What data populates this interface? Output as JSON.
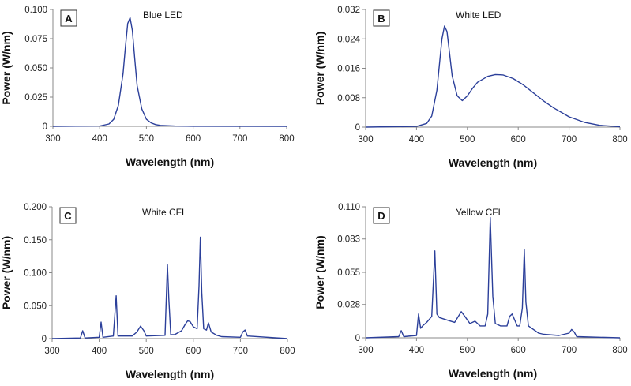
{
  "chart_data": [
    {
      "type": "line",
      "panel_label": "A",
      "title": "Blue LED",
      "xlabel": "Wavelength (nm)",
      "ylabel": "Power (W/nm)",
      "xlim": [
        300,
        800
      ],
      "ylim": [
        0,
        0.1
      ],
      "x_ticks": [
        "300",
        "400",
        "500",
        "600",
        "700",
        "800"
      ],
      "y_ticks": [
        "0",
        "0.025",
        "0.050",
        "0.075",
        "0.100"
      ],
      "x_tick_values": [
        300,
        400,
        500,
        600,
        700,
        800
      ],
      "y_tick_values": [
        0,
        0.025,
        0.05,
        0.075,
        0.1
      ],
      "series_color": "#2b3f9a",
      "series": [
        {
          "name": "Blue LED",
          "x": [
            300,
            400,
            420,
            430,
            440,
            450,
            455,
            460,
            465,
            470,
            475,
            480,
            490,
            500,
            510,
            520,
            530,
            560,
            600,
            800
          ],
          "y": [
            0,
            0.0003,
            0.002,
            0.006,
            0.018,
            0.045,
            0.068,
            0.088,
            0.093,
            0.082,
            0.058,
            0.035,
            0.015,
            0.006,
            0.003,
            0.0015,
            0.0008,
            0.0003,
            0.0001,
            0
          ]
        }
      ]
    },
    {
      "type": "line",
      "panel_label": "B",
      "title": "White LED",
      "xlabel": "Wavelength (nm)",
      "ylabel": "Power (W/nm)",
      "xlim": [
        300,
        800
      ],
      "ylim": [
        0,
        0.032
      ],
      "x_ticks": [
        "300",
        "400",
        "500",
        "600",
        "700",
        "800"
      ],
      "y_ticks": [
        "0",
        "0.008",
        "0.016",
        "0.024",
        "0.032"
      ],
      "x_tick_values": [
        300,
        400,
        500,
        600,
        700,
        800
      ],
      "y_tick_values": [
        0,
        0.008,
        0.016,
        0.024,
        0.032
      ],
      "series_color": "#2b3f9a",
      "series": [
        {
          "name": "White LED",
          "x": [
            300,
            400,
            420,
            430,
            440,
            445,
            450,
            455,
            460,
            465,
            470,
            480,
            490,
            500,
            510,
            520,
            540,
            555,
            570,
            590,
            610,
            630,
            650,
            670,
            700,
            730,
            760,
            800
          ],
          "y": [
            0,
            0.0002,
            0.001,
            0.003,
            0.01,
            0.017,
            0.024,
            0.0275,
            0.026,
            0.02,
            0.014,
            0.0085,
            0.0072,
            0.0085,
            0.0105,
            0.0122,
            0.0138,
            0.0143,
            0.0142,
            0.0132,
            0.0115,
            0.0093,
            0.0071,
            0.0052,
            0.0028,
            0.0013,
            0.0005,
            0.0001
          ]
        }
      ]
    },
    {
      "type": "line",
      "panel_label": "C",
      "title": "White CFL",
      "xlabel": "Wavelength (nm)",
      "ylabel": "Power (W/nm)",
      "xlim": [
        300,
        800
      ],
      "ylim": [
        0,
        0.2
      ],
      "x_ticks": [
        "300",
        "400",
        "500",
        "600",
        "700",
        "800"
      ],
      "y_ticks": [
        "0",
        "0.050",
        "0.100",
        "0.150",
        "0.200"
      ],
      "x_tick_values": [
        300,
        400,
        500,
        600,
        700,
        800
      ],
      "y_tick_values": [
        0,
        0.05,
        0.1,
        0.15,
        0.2
      ],
      "series_color": "#2b3f9a",
      "series": [
        {
          "name": "White CFL",
          "x": [
            300,
            360,
            365,
            370,
            400,
            404,
            408,
            430,
            436,
            440,
            470,
            480,
            488,
            495,
            500,
            540,
            545,
            548,
            552,
            560,
            575,
            583,
            588,
            593,
            600,
            608,
            612,
            615,
            618,
            622,
            628,
            632,
            638,
            650,
            660,
            700,
            705,
            710,
            715,
            800
          ],
          "y": [
            0,
            0.001,
            0.012,
            0.001,
            0.002,
            0.025,
            0.002,
            0.004,
            0.065,
            0.004,
            0.004,
            0.01,
            0.019,
            0.012,
            0.004,
            0.005,
            0.112,
            0.06,
            0.006,
            0.006,
            0.012,
            0.022,
            0.027,
            0.026,
            0.018,
            0.015,
            0.08,
            0.154,
            0.07,
            0.015,
            0.013,
            0.024,
            0.01,
            0.005,
            0.003,
            0.002,
            0.01,
            0.013,
            0.004,
            0
          ]
        }
      ]
    },
    {
      "type": "line",
      "panel_label": "D",
      "title": "Yellow CFL",
      "xlabel": "Wavelength (nm)",
      "ylabel": "Power (W/nm)",
      "xlim": [
        300,
        800
      ],
      "ylim": [
        0,
        0.11
      ],
      "x_ticks": [
        "300",
        "400",
        "500",
        "600",
        "700",
        "800"
      ],
      "y_ticks": [
        "0",
        "0.028",
        "0.055",
        "0.083",
        "0.110"
      ],
      "x_tick_values": [
        300,
        400,
        500,
        600,
        700,
        800
      ],
      "y_tick_values": [
        0,
        0.028,
        0.055,
        0.083,
        0.11
      ],
      "series_color": "#2b3f9a",
      "series": [
        {
          "name": "Yellow CFL",
          "x": [
            300,
            365,
            370,
            375,
            400,
            404,
            408,
            412,
            420,
            430,
            436,
            440,
            445,
            460,
            475,
            488,
            495,
            505,
            515,
            525,
            535,
            540,
            545,
            550,
            555,
            565,
            578,
            583,
            588,
            593,
            598,
            603,
            608,
            612,
            615,
            620,
            630,
            640,
            650,
            680,
            700,
            705,
            710,
            715,
            800
          ],
          "y": [
            0,
            0.001,
            0.006,
            0.001,
            0.002,
            0.02,
            0.008,
            0.01,
            0.013,
            0.018,
            0.073,
            0.02,
            0.017,
            0.015,
            0.013,
            0.022,
            0.018,
            0.012,
            0.014,
            0.01,
            0.01,
            0.02,
            0.101,
            0.035,
            0.012,
            0.01,
            0.01,
            0.018,
            0.02,
            0.015,
            0.01,
            0.01,
            0.025,
            0.074,
            0.03,
            0.01,
            0.007,
            0.004,
            0.003,
            0.002,
            0.004,
            0.007,
            0.005,
            0.001,
            0
          ]
        }
      ]
    }
  ]
}
